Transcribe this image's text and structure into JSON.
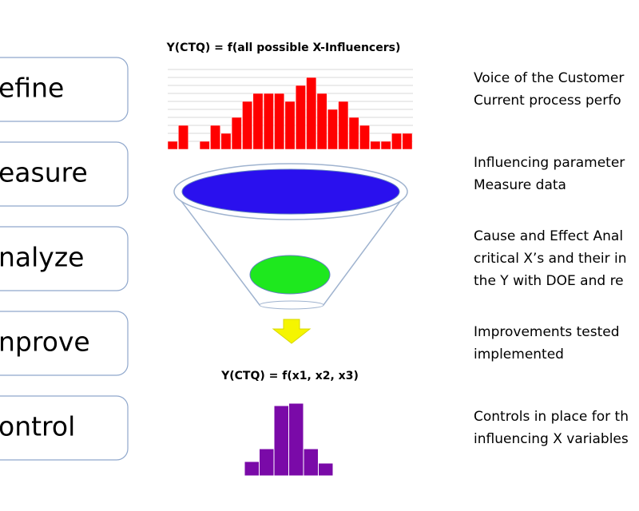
{
  "steps": [
    {
      "label": "efine",
      "description": [
        "Voice of the Customer",
        "Current process perfo"
      ]
    },
    {
      "label": "easure",
      "description": [
        "Influencing parameter",
        "Measure data"
      ]
    },
    {
      "label": "nalyze",
      "description": [
        "Cause and Effect Anal",
        "critical X’s and their in",
        "the Y with DOE and re"
      ]
    },
    {
      "label": "nprove",
      "description": [
        "Improvements tested",
        "implemented"
      ]
    },
    {
      "label": "ontrol",
      "description": [
        "Controls in place for th",
        "influencing X variables"
      ]
    }
  ],
  "top_formula": "Y(CTQ) = f(all possible X-Influencers)",
  "bottom_formula": "Y(CTQ) = f(x1, x2, x3)",
  "top_histogram": {
    "color": "#ff0000",
    "values": [
      1,
      3,
      0,
      1,
      3,
      2,
      4,
      6,
      7,
      7,
      7,
      6,
      8,
      9,
      7,
      5,
      6,
      4,
      3,
      1,
      1,
      2,
      2
    ]
  },
  "bottom_histogram": {
    "color": "#7a0aa8",
    "values": [
      18,
      34,
      88,
      91,
      34,
      16
    ]
  }
}
